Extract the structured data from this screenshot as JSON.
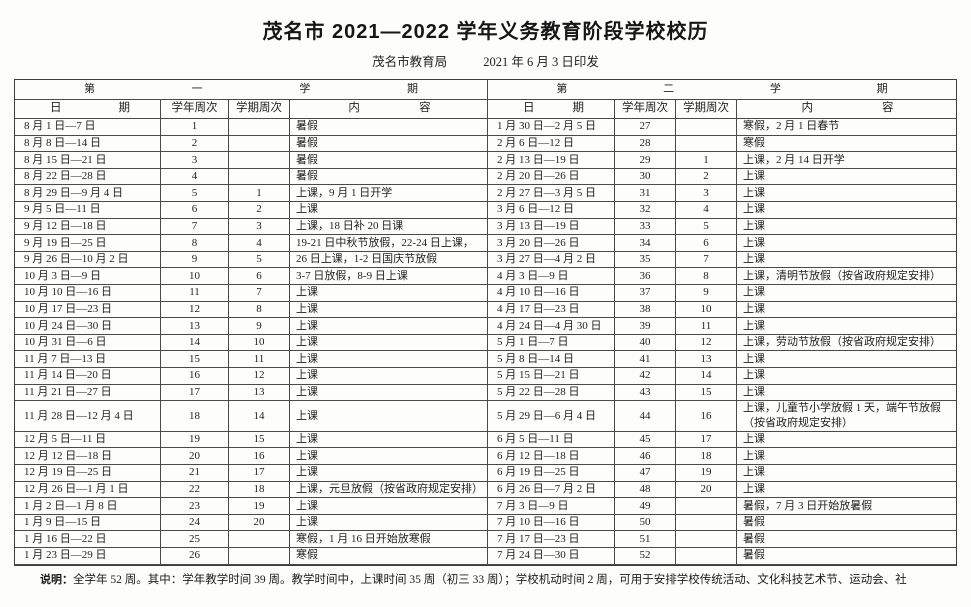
{
  "title": "茂名市 2021—2022 学年义务教育阶段学校校历",
  "subtitle": {
    "issuer": "茂名市教育局",
    "print_date": "2021 年 6 月 3 日印发"
  },
  "tables": [
    {
      "semester": "第一学期",
      "columns": [
        "日期",
        "学年周次",
        "学期周次",
        "内容"
      ],
      "rows": [
        {
          "date": "8 月 1 日—7 日",
          "year_week": "1",
          "semester_week": "",
          "content": "暑假"
        },
        {
          "date": "8 月 8 日—14 日",
          "year_week": "2",
          "semester_week": "",
          "content": "暑假"
        },
        {
          "date": "8 月 15 日—21 日",
          "year_week": "3",
          "semester_week": "",
          "content": "暑假"
        },
        {
          "date": "8 月 22 日—28 日",
          "year_week": "4",
          "semester_week": "",
          "content": "暑假"
        },
        {
          "date": "8 月 29 日—9 月 4 日",
          "year_week": "5",
          "semester_week": "1",
          "content": "上课，9 月 1 日开学"
        },
        {
          "date": "9 月 5 日—11 日",
          "year_week": "6",
          "semester_week": "2",
          "content": "上课"
        },
        {
          "date": "9 月 12 日—18 日",
          "year_week": "7",
          "semester_week": "3",
          "content": "上课，18 日补 20 日课"
        },
        {
          "date": "9 月 19 日—25 日",
          "year_week": "8",
          "semester_week": "4",
          "content": "19-21 日中秋节放假，22-24 日上课，"
        },
        {
          "date": "9 月 26 日—10 月 2 日",
          "year_week": "9",
          "semester_week": "5",
          "content": "26 日上课，1-2 日国庆节放假"
        },
        {
          "date": "10 月 3 日—9 日",
          "year_week": "10",
          "semester_week": "6",
          "content": "3-7 日放假，8-9 日上课"
        },
        {
          "date": "10 月 10 日—16 日",
          "year_week": "11",
          "semester_week": "7",
          "content": "上课"
        },
        {
          "date": "10 月 17 日—23 日",
          "year_week": "12",
          "semester_week": "8",
          "content": "上课"
        },
        {
          "date": "10 月 24 日—30 日",
          "year_week": "13",
          "semester_week": "9",
          "content": "上课"
        },
        {
          "date": "10 月 31 日—6 日",
          "year_week": "14",
          "semester_week": "10",
          "content": "上课"
        },
        {
          "date": "11 月 7 日—13 日",
          "year_week": "15",
          "semester_week": "11",
          "content": "上课"
        },
        {
          "date": "11 月 14 日—20 日",
          "year_week": "16",
          "semester_week": "12",
          "content": "上课"
        },
        {
          "date": "11 月 21 日—27 日",
          "year_week": "17",
          "semester_week": "13",
          "content": "上课"
        },
        {
          "date": "11 月 28 日—12 月 4 日",
          "year_week": "18",
          "semester_week": "14",
          "content": "上课"
        },
        {
          "date": "12 月 5 日—11 日",
          "year_week": "19",
          "semester_week": "15",
          "content": "上课"
        },
        {
          "date": "12 月 12 日—18 日",
          "year_week": "20",
          "semester_week": "16",
          "content": "上课"
        },
        {
          "date": "12 月 19 日—25 日",
          "year_week": "21",
          "semester_week": "17",
          "content": "上课"
        },
        {
          "date": "12 月 26 日—1 月 1 日",
          "year_week": "22",
          "semester_week": "18",
          "content": "上课，元旦放假（按省政府规定安排）"
        },
        {
          "date": "1 月 2 日—1 月 8 日",
          "year_week": "23",
          "semester_week": "19",
          "content": "上课"
        },
        {
          "date": "1 月 9 日—15 日",
          "year_week": "24",
          "semester_week": "20",
          "content": "上课"
        },
        {
          "date": "1 月 16 日—22 日",
          "year_week": "25",
          "semester_week": "",
          "content": "寒假，1 月 16 日开始放寒假"
        },
        {
          "date": "1 月 23 日—29 日",
          "year_week": "26",
          "semester_week": "",
          "content": "寒假"
        }
      ]
    },
    {
      "semester": "第二学期",
      "columns": [
        "日期",
        "学年周次",
        "学期周次",
        "内容"
      ],
      "rows": [
        {
          "date": "1 月 30 日—2 月 5 日",
          "year_week": "27",
          "semester_week": "",
          "content": "寒假，2 月 1 日春节"
        },
        {
          "date": "2 月 6 日—12 日",
          "year_week": "28",
          "semester_week": "",
          "content": "寒假"
        },
        {
          "date": "2 月 13 日—19 日",
          "year_week": "29",
          "semester_week": "1",
          "content": "上课，2 月 14 日开学"
        },
        {
          "date": "2 月 20 日—26 日",
          "year_week": "30",
          "semester_week": "2",
          "content": "上课"
        },
        {
          "date": "2 月 27 日—3 月 5 日",
          "year_week": "31",
          "semester_week": "3",
          "content": "上课"
        },
        {
          "date": "3 月 6 日—12 日",
          "year_week": "32",
          "semester_week": "4",
          "content": "上课"
        },
        {
          "date": "3 月 13 日—19 日",
          "year_week": "33",
          "semester_week": "5",
          "content": "上课"
        },
        {
          "date": "3 月 20 日—26 日",
          "year_week": "34",
          "semester_week": "6",
          "content": "上课"
        },
        {
          "date": "3 月 27 日—4 月 2 日",
          "year_week": "35",
          "semester_week": "7",
          "content": "上课"
        },
        {
          "date": "4 月 3 日—9 日",
          "year_week": "36",
          "semester_week": "8",
          "content": "上课，清明节放假（按省政府规定安排）"
        },
        {
          "date": "4 月 10 日—16 日",
          "year_week": "37",
          "semester_week": "9",
          "content": "上课"
        },
        {
          "date": "4 月 17 日—23 日",
          "year_week": "38",
          "semester_week": "10",
          "content": "上课"
        },
        {
          "date": "4 月 24 日—4 月 30 日",
          "year_week": "39",
          "semester_week": "11",
          "content": "上课"
        },
        {
          "date": "5 月 1 日—7 日",
          "year_week": "40",
          "semester_week": "12",
          "content": "上课，劳动节放假（按省政府规定安排）"
        },
        {
          "date": "5 月 8 日—14 日",
          "year_week": "41",
          "semester_week": "13",
          "content": "上课"
        },
        {
          "date": "5 月 15 日—21 日",
          "year_week": "42",
          "semester_week": "14",
          "content": "上课"
        },
        {
          "date": "5 月 22 日—28 日",
          "year_week": "43",
          "semester_week": "15",
          "content": "上课"
        },
        {
          "date": "5 月 29 日—6 月 4 日",
          "year_week": "44",
          "semester_week": "16",
          "content": "上课，儿童节小学放假 1 天，端午节放假（按省政府规定安排）"
        },
        {
          "date": "6 月 5 日—11 日",
          "year_week": "45",
          "semester_week": "17",
          "content": "上课"
        },
        {
          "date": "6 月 12 日—18 日",
          "year_week": "46",
          "semester_week": "18",
          "content": "上课"
        },
        {
          "date": "6 月 19 日—25 日",
          "year_week": "47",
          "semester_week": "19",
          "content": "上课"
        },
        {
          "date": "6 月 26 日—7 月 2 日",
          "year_week": "48",
          "semester_week": "20",
          "content": "上课"
        },
        {
          "date": "7 月 3 日—9 日",
          "year_week": "49",
          "semester_week": "",
          "content": "暑假，7 月 3 日开始放暑假"
        },
        {
          "date": "7 月 10 日—16 日",
          "year_week": "50",
          "semester_week": "",
          "content": "暑假"
        },
        {
          "date": "7 月 17 日—23 日",
          "year_week": "51",
          "semester_week": "",
          "content": "暑假"
        },
        {
          "date": "7 月 24 日—30 日",
          "year_week": "52",
          "semester_week": "",
          "content": "暑假"
        }
      ]
    }
  ],
  "note": {
    "label": "说明：",
    "text": "全学年 52 周。其中：学年教学时间 39 周。教学时间中，上课时间 35 周（初三 33 周）；学校机动时间 2 周，可用于安排学校传统活动、文化科技艺术节、运动会、社"
  }
}
